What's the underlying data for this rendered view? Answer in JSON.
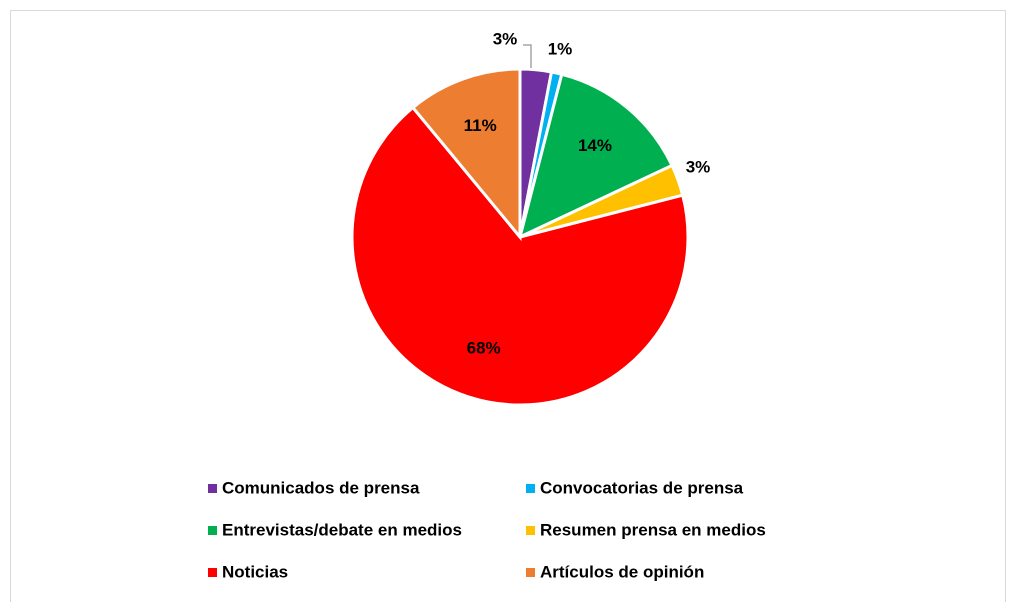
{
  "chart_data": {
    "type": "pie",
    "categories": [
      "Comunicados de prensa",
      "Convocatorias de prensa",
      "Entrevistas/debate en medios",
      "Resumen prensa en medios",
      "Noticias",
      "Artículos de opinión"
    ],
    "values": [
      3,
      1,
      14,
      3,
      68,
      11
    ],
    "value_labels": [
      "3%",
      "1%",
      "14%",
      "3%",
      "68%",
      "11%"
    ],
    "colors": [
      "#7030a0",
      "#00b0f0",
      "#00b050",
      "#ffc000",
      "#ff0000",
      "#ed7d31"
    ],
    "legend": "bottom"
  }
}
